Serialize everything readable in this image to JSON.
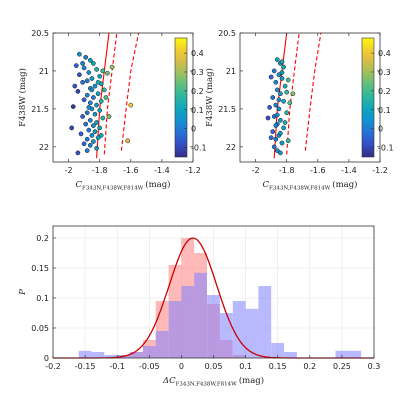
{
  "chart_data": [
    {
      "type": "scatter",
      "title": "",
      "xlabel": "C_{F343N,F438W,F814W} (mag)",
      "xlabel_main": "C",
      "xlabel_sub": "F343N,F438W,F814W",
      "xlabel_unit": "(mag)",
      "ylabel": "F438W (mag)",
      "xlim": [
        -2.1,
        -1.2
      ],
      "ylim": [
        22.2,
        20.5
      ],
      "xticks": [
        "-2",
        "-1.8",
        "-1.6",
        "-1.4",
        "-1.2"
      ],
      "xtick_values": [
        -2,
        -1.8,
        -1.6,
        -1.4,
        -1.2
      ],
      "yticks": [
        "20.5",
        "21",
        "21.5",
        "22"
      ],
      "ytick_values": [
        20.5,
        21,
        21.5,
        22
      ],
      "colorbar": {
        "min": -0.15,
        "max": 0.48,
        "ticks": [
          "0.4",
          "0.3",
          "0.2",
          "0.1",
          "0",
          "-0.1"
        ],
        "tick_values": [
          0.4,
          0.3,
          0.2,
          0.1,
          0,
          -0.1
        ]
      },
      "fiducial_lines": [
        {
          "style": "solid",
          "points": [
            [
              -1.82,
              22.15
            ],
            [
              -1.8,
              21.5
            ],
            [
              -1.77,
              21.0
            ],
            [
              -1.74,
              20.5
            ]
          ]
        },
        {
          "style": "dashed",
          "points": [
            [
              -1.77,
              22.1
            ],
            [
              -1.75,
              21.5
            ],
            [
              -1.72,
              21.0
            ],
            [
              -1.69,
              20.5
            ]
          ]
        },
        {
          "style": "dashed",
          "points": [
            [
              -1.66,
              22.05
            ],
            [
              -1.63,
              21.5
            ],
            [
              -1.6,
              21.0
            ],
            [
              -1.55,
              20.5
            ]
          ]
        }
      ],
      "points": [
        {
          "x": -1.93,
          "y": 20.78,
          "c": 0.05
        },
        {
          "x": -1.89,
          "y": 20.82,
          "c": 0.0
        },
        {
          "x": -1.86,
          "y": 20.86,
          "c": 0.1
        },
        {
          "x": -1.84,
          "y": 20.9,
          "c": 0.12
        },
        {
          "x": -1.95,
          "y": 20.93,
          "c": -0.05
        },
        {
          "x": -1.9,
          "y": 20.96,
          "c": 0.02
        },
        {
          "x": -1.82,
          "y": 20.98,
          "c": 0.15
        },
        {
          "x": -1.78,
          "y": 21.0,
          "c": 0.2
        },
        {
          "x": -1.87,
          "y": 21.02,
          "c": 0.05
        },
        {
          "x": -1.75,
          "y": 21.03,
          "c": 0.25
        },
        {
          "x": -1.93,
          "y": 21.05,
          "c": -0.08
        },
        {
          "x": -1.8,
          "y": 21.07,
          "c": 0.1
        },
        {
          "x": -1.85,
          "y": 21.1,
          "c": 0.08
        },
        {
          "x": -1.88,
          "y": 21.13,
          "c": 0.0
        },
        {
          "x": -1.91,
          "y": 21.15,
          "c": -0.02
        },
        {
          "x": -1.79,
          "y": 21.17,
          "c": 0.12
        },
        {
          "x": -1.83,
          "y": 21.2,
          "c": 0.04
        },
        {
          "x": -1.86,
          "y": 21.23,
          "c": 0.06
        },
        {
          "x": -1.77,
          "y": 21.25,
          "c": 0.18
        },
        {
          "x": -1.94,
          "y": 21.27,
          "c": -0.1
        },
        {
          "x": -1.81,
          "y": 21.3,
          "c": 0.1
        },
        {
          "x": -1.88,
          "y": 21.32,
          "c": 0.02
        },
        {
          "x": -1.84,
          "y": 21.35,
          "c": 0.0
        },
        {
          "x": -1.9,
          "y": 21.38,
          "c": -0.05
        },
        {
          "x": -1.79,
          "y": 21.4,
          "c": 0.14
        },
        {
          "x": -1.86,
          "y": 21.42,
          "c": 0.03
        },
        {
          "x": -1.82,
          "y": 21.45,
          "c": 0.08
        },
        {
          "x": -1.97,
          "y": 21.47,
          "c": -0.12
        },
        {
          "x": -1.85,
          "y": 21.5,
          "c": 0.05
        },
        {
          "x": -1.8,
          "y": 21.52,
          "c": 0.1
        },
        {
          "x": -1.88,
          "y": 21.55,
          "c": 0.0
        },
        {
          "x": -1.83,
          "y": 21.57,
          "c": 0.06
        },
        {
          "x": -1.91,
          "y": 21.6,
          "c": -0.04
        },
        {
          "x": -1.78,
          "y": 21.62,
          "c": 0.16
        },
        {
          "x": -1.86,
          "y": 21.65,
          "c": 0.02
        },
        {
          "x": -1.82,
          "y": 21.68,
          "c": 0.09
        },
        {
          "x": -1.89,
          "y": 21.7,
          "c": -0.02
        },
        {
          "x": -1.84,
          "y": 21.72,
          "c": 0.04
        },
        {
          "x": -1.8,
          "y": 21.75,
          "c": 0.12
        },
        {
          "x": -1.87,
          "y": 21.78,
          "c": 0.0
        },
        {
          "x": -1.83,
          "y": 21.8,
          "c": 0.07
        },
        {
          "x": -1.92,
          "y": 21.83,
          "c": -0.06
        },
        {
          "x": -1.85,
          "y": 21.85,
          "c": 0.03
        },
        {
          "x": -1.81,
          "y": 21.88,
          "c": 0.1
        },
        {
          "x": -1.88,
          "y": 21.9,
          "c": -0.01
        },
        {
          "x": -1.84,
          "y": 21.93,
          "c": 0.05
        },
        {
          "x": -1.9,
          "y": 21.96,
          "c": -0.03
        },
        {
          "x": -1.86,
          "y": 21.98,
          "c": 0.01
        },
        {
          "x": -1.82,
          "y": 22.02,
          "c": 0.08
        },
        {
          "x": -1.88,
          "y": 22.05,
          "c": 0.0
        },
        {
          "x": -1.94,
          "y": 22.08,
          "c": -0.08
        },
        {
          "x": -1.72,
          "y": 20.95,
          "c": 0.3
        },
        {
          "x": -1.76,
          "y": 21.35,
          "c": 0.22
        },
        {
          "x": -1.74,
          "y": 21.6,
          "c": 0.26
        },
        {
          "x": -1.6,
          "y": 21.45,
          "c": 0.42
        },
        {
          "x": -1.62,
          "y": 21.92,
          "c": 0.38
        },
        {
          "x": -1.98,
          "y": 21.75,
          "c": -0.1
        },
        {
          "x": -1.96,
          "y": 21.2,
          "c": -0.07
        },
        {
          "x": -1.91,
          "y": 20.9,
          "c": 0.0
        },
        {
          "x": -1.87,
          "y": 21.48,
          "c": 0.04
        },
        {
          "x": -1.81,
          "y": 21.15,
          "c": 0.13
        },
        {
          "x": -1.79,
          "y": 21.85,
          "c": 0.11
        },
        {
          "x": -1.85,
          "y": 21.25,
          "c": 0.06
        }
      ]
    },
    {
      "type": "scatter",
      "title": "",
      "xlabel": "C_{F343N,F438W,F814W} (mag)",
      "xlabel_main": "C",
      "xlabel_sub": "F343N,F438W,F814W",
      "xlabel_unit": "(mag)",
      "ylabel": "F438W (mag)",
      "xlim": [
        -2.1,
        -1.2
      ],
      "ylim": [
        22.2,
        20.5
      ],
      "xticks": [
        "-2",
        "-1.8",
        "-1.6",
        "-1.4",
        "-1.2"
      ],
      "xtick_values": [
        -2,
        -1.8,
        -1.6,
        -1.4,
        -1.2
      ],
      "yticks": [
        "20.5",
        "21",
        "21.5",
        "22"
      ],
      "ytick_values": [
        20.5,
        21,
        21.5,
        22
      ],
      "colorbar": {
        "min": -0.15,
        "max": 0.48,
        "ticks": [
          "0.4",
          "0.3",
          "0.2",
          "0.1",
          "0",
          "-0.1"
        ],
        "tick_values": [
          0.4,
          0.3,
          0.2,
          0.1,
          0,
          -0.1
        ]
      },
      "fiducial_lines": [
        {
          "style": "solid",
          "points": [
            [
              -1.88,
              22.15
            ],
            [
              -1.86,
              21.5
            ],
            [
              -1.83,
              21.0
            ],
            [
              -1.8,
              20.5
            ]
          ]
        },
        {
          "style": "dashed",
          "points": [
            [
              -1.8,
              22.1
            ],
            [
              -1.78,
              21.5
            ],
            [
              -1.75,
              21.0
            ],
            [
              -1.72,
              20.5
            ]
          ]
        },
        {
          "style": "dashed",
          "points": [
            [
              -1.68,
              22.05
            ],
            [
              -1.65,
              21.5
            ],
            [
              -1.62,
              21.0
            ],
            [
              -1.58,
              20.5
            ]
          ]
        }
      ],
      "points": [
        {
          "x": -1.86,
          "y": 20.85,
          "c": 0.1
        },
        {
          "x": -1.84,
          "y": 20.9,
          "c": 0.05
        },
        {
          "x": -1.82,
          "y": 20.95,
          "c": 0.12
        },
        {
          "x": -1.88,
          "y": 21.0,
          "c": 0.0
        },
        {
          "x": -1.85,
          "y": 21.05,
          "c": 0.06
        },
        {
          "x": -1.83,
          "y": 21.1,
          "c": 0.09
        },
        {
          "x": -1.87,
          "y": 21.15,
          "c": 0.02
        },
        {
          "x": -1.81,
          "y": 21.2,
          "c": 0.14
        },
        {
          "x": -1.86,
          "y": 21.25,
          "c": 0.04
        },
        {
          "x": -1.84,
          "y": 21.3,
          "c": 0.07
        },
        {
          "x": -1.89,
          "y": 21.35,
          "c": -0.02
        },
        {
          "x": -1.82,
          "y": 21.4,
          "c": 0.11
        },
        {
          "x": -1.87,
          "y": 21.45,
          "c": 0.01
        },
        {
          "x": -1.85,
          "y": 21.5,
          "c": 0.05
        },
        {
          "x": -1.8,
          "y": 21.55,
          "c": 0.16
        },
        {
          "x": -1.88,
          "y": 21.6,
          "c": -0.01
        },
        {
          "x": -1.84,
          "y": 21.65,
          "c": 0.08
        },
        {
          "x": -1.86,
          "y": 21.7,
          "c": 0.03
        },
        {
          "x": -1.82,
          "y": 21.75,
          "c": 0.1
        },
        {
          "x": -1.89,
          "y": 21.8,
          "c": -0.04
        },
        {
          "x": -1.85,
          "y": 21.85,
          "c": 0.05
        },
        {
          "x": -1.87,
          "y": 21.9,
          "c": 0.0
        },
        {
          "x": -1.83,
          "y": 21.95,
          "c": 0.09
        },
        {
          "x": -1.88,
          "y": 22.0,
          "c": -0.02
        },
        {
          "x": -1.86,
          "y": 22.05,
          "c": 0.02
        },
        {
          "x": -1.83,
          "y": 20.88,
          "c": 0.13
        },
        {
          "x": -1.9,
          "y": 21.08,
          "c": -0.05
        },
        {
          "x": -1.8,
          "y": 21.28,
          "c": 0.18
        },
        {
          "x": -1.91,
          "y": 21.48,
          "c": -0.06
        },
        {
          "x": -1.81,
          "y": 21.68,
          "c": 0.15
        },
        {
          "x": -1.9,
          "y": 21.88,
          "c": -0.03
        },
        {
          "x": -1.84,
          "y": 22.08,
          "c": 0.06
        },
        {
          "x": -1.79,
          "y": 21.12,
          "c": 0.2
        },
        {
          "x": -1.78,
          "y": 21.42,
          "c": 0.22
        },
        {
          "x": -1.92,
          "y": 21.62,
          "c": -0.08
        },
        {
          "x": -1.79,
          "y": 21.92,
          "c": 0.19
        },
        {
          "x": -1.85,
          "y": 21.38,
          "c": 0.04
        },
        {
          "x": -1.87,
          "y": 21.72,
          "c": 0.01
        },
        {
          "x": -1.83,
          "y": 21.02,
          "c": 0.1
        },
        {
          "x": -1.86,
          "y": 21.58,
          "c": 0.03
        },
        {
          "x": -1.84,
          "y": 21.82,
          "c": 0.07
        },
        {
          "x": -1.76,
          "y": 21.3,
          "c": 0.28
        }
      ]
    },
    {
      "type": "histogram",
      "title": "",
      "xlabel": "ΔC_{F343N,F438W,F814W} (mag)",
      "xlabel_main": "ΔC",
      "xlabel_sub": "F343N,F438W,F814W",
      "xlabel_unit": "(mag)",
      "ylabel": "P",
      "xlim": [
        -0.2,
        0.3
      ],
      "ylim": [
        0,
        0.22
      ],
      "xticks": [
        "-0.2",
        "-0.15",
        "-0.1",
        "-0.05",
        "0",
        "0.05",
        "0.1",
        "0.15",
        "0.2",
        "0.25",
        "0.3"
      ],
      "xtick_values": [
        -0.2,
        -0.15,
        -0.1,
        -0.05,
        0,
        0.05,
        0.1,
        0.15,
        0.2,
        0.25,
        0.3
      ],
      "yticks": [
        "0",
        "0.05",
        "0.1",
        "0.15",
        "0.2"
      ],
      "ytick_values": [
        0,
        0.05,
        0.1,
        0.15,
        0.2
      ],
      "series": [
        {
          "color": "#ff8080",
          "bin_edges": [
            -0.12,
            -0.1,
            -0.08,
            -0.06,
            -0.04,
            -0.02,
            0.0,
            0.02,
            0.04,
            0.06,
            0.08,
            0.1
          ],
          "values": [
            0.0,
            0.005,
            0.01,
            0.03,
            0.095,
            0.155,
            0.2,
            0.175,
            0.09,
            0.03,
            0.005
          ]
        },
        {
          "color": "#8080ff",
          "bin_edges": [
            -0.16,
            -0.14,
            -0.12,
            -0.1,
            -0.08,
            -0.06,
            -0.04,
            -0.02,
            0.0,
            0.02,
            0.04,
            0.06,
            0.08,
            0.1,
            0.12,
            0.14,
            0.16,
            0.18,
            0.2,
            0.22,
            0.24,
            0.26,
            0.28
          ],
          "values": [
            0.012,
            0.01,
            0.005,
            0.005,
            0.01,
            0.02,
            0.045,
            0.095,
            0.12,
            0.142,
            0.105,
            0.075,
            0.095,
            0.082,
            0.12,
            0.025,
            0.01,
            0.0,
            0.0,
            0.0,
            0.012,
            0.012
          ]
        }
      ],
      "fit": {
        "type": "gaussian",
        "color": "#cc0000",
        "mean": 0.018,
        "sigma": 0.037,
        "amplitude": 0.2
      }
    }
  ]
}
